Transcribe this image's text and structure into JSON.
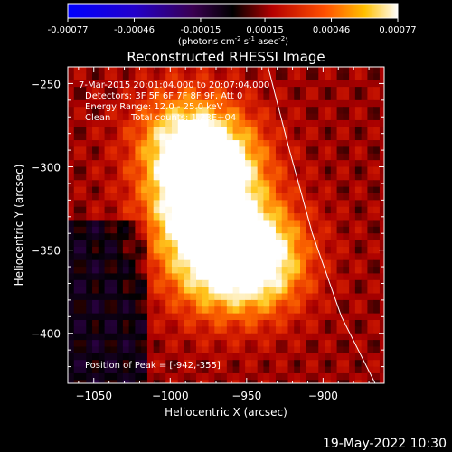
{
  "colorbar": {
    "tick_labels": [
      "-0.00077",
      "-0.00046",
      "-0.00015",
      "0.00015",
      "0.00046",
      "0.00077"
    ],
    "tick_values": [
      -0.00077,
      -0.00046,
      -0.00015,
      0.00015,
      0.00046,
      0.00077
    ],
    "range": [
      -0.00077,
      0.00077
    ],
    "units_prefix": "(photons cm",
    "units_sup1": "-2",
    "units_mid": " s",
    "units_sup2": "-1",
    "units_post": " asec",
    "units_sup3": "-2",
    "units_close": ")"
  },
  "chart_data": {
    "type": "heatmap",
    "title": "Reconstructed RHESSI Image",
    "xlabel": "Heliocentric X (arcsec)",
    "ylabel": "Heliocentric Y (arcsec)",
    "xlim": [
      -1067,
      -860
    ],
    "ylim": [
      -430,
      -240
    ],
    "x_ticks": [
      -1050,
      -1000,
      -950,
      -900
    ],
    "x_tick_labels": [
      "−1050",
      "−1000",
      "−950",
      "−900"
    ],
    "y_ticks": [
      -250,
      -300,
      -350,
      -400
    ],
    "y_tick_labels": [
      "−250",
      "−300",
      "−350",
      "−400"
    ],
    "annotations": [
      "7-Mar-2015 20:01:04.000 to 20:07:04.000",
      "Detectors: 3F 5F 6F 7F 8F 9F, Att 0",
      "Energy Range: 12.0 - 25.0 keV",
      "Clean",
      "Total counts: 1.23E+04"
    ],
    "peak_label": "Position of Peak = [-942,-355]",
    "peak_position": [
      -942,
      -355
    ],
    "sources": [
      {
        "x": -992,
        "y": -285,
        "flux": 0.00055
      },
      {
        "x": -985,
        "y": -325,
        "flux": 0.00058
      },
      {
        "x": -965,
        "y": -300,
        "flux": 0.00052
      },
      {
        "x": -942,
        "y": -355,
        "flux": 0.00075
      },
      {
        "x": -975,
        "y": -360,
        "flux": 0.00045
      }
    ],
    "limb_curve": [
      [
        -936,
        -240
      ],
      [
        -922,
        -290
      ],
      [
        -907,
        -340
      ],
      [
        -888,
        -390
      ],
      [
        -866,
        -430
      ]
    ]
  },
  "footer": {
    "timestamp": "19-May-2022 10:30"
  }
}
